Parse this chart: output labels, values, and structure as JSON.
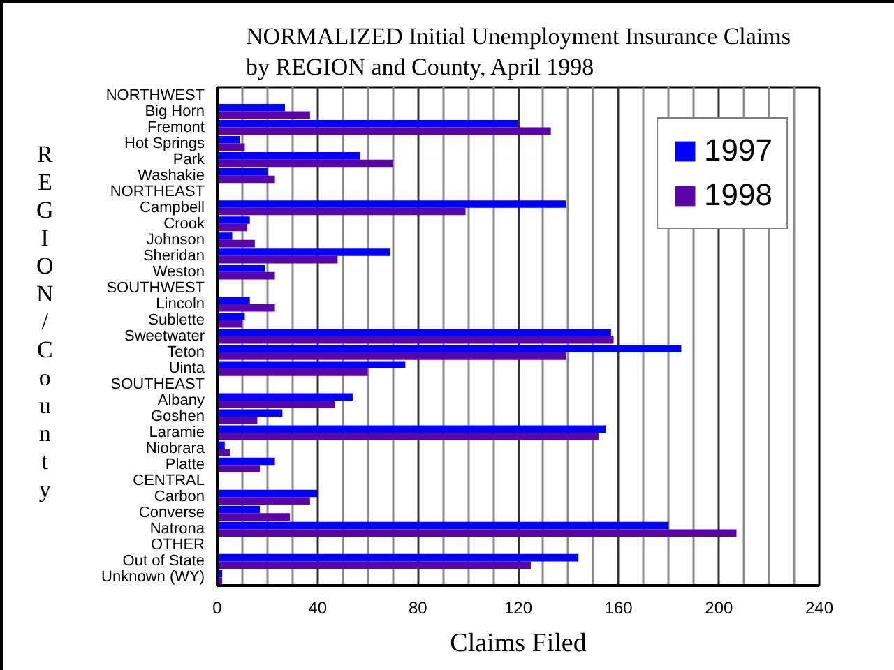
{
  "chart_data": {
    "type": "bar",
    "orientation": "horizontal",
    "title": "NORMALIZED Initial Unemployment Insurance Claims by REGION and County, April 1998",
    "xlabel": "Claims Filed",
    "ylabel": "REGION/County",
    "categories": [
      "NORTHWEST",
      "Big Horn",
      "Fremont",
      "Hot Springs",
      "Park",
      "Washakie",
      "NORTHEAST",
      "Campbell",
      "Crook",
      "Johnson",
      "Sheridan",
      "Weston",
      "SOUTHWEST",
      "Lincoln",
      "Sublette",
      "Sweetwater",
      "Teton",
      "Uinta",
      "SOUTHEAST",
      "Albany",
      "Goshen",
      "Laramie",
      "Niobrara",
      "Platte",
      "CENTRAL",
      "Carbon",
      "Converse",
      "Natrona",
      "OTHER",
      "Out of State",
      "Unknown (WY)"
    ],
    "series": [
      {
        "name": "1997",
        "color": "#0000ff",
        "values": [
          null,
          27,
          120,
          9,
          57,
          20,
          null,
          139,
          13,
          6,
          69,
          19,
          null,
          13,
          11,
          157,
          185,
          75,
          null,
          54,
          26,
          155,
          3,
          23,
          null,
          40,
          17,
          180,
          null,
          144,
          2
        ]
      },
      {
        "name": "1998",
        "color": "#5a05aa",
        "values": [
          null,
          37,
          133,
          11,
          70,
          23,
          null,
          99,
          12,
          15,
          48,
          23,
          null,
          23,
          10,
          158,
          139,
          60,
          null,
          47,
          16,
          152,
          5,
          17,
          null,
          37,
          29,
          207,
          null,
          125,
          2
        ]
      }
    ],
    "xlim": [
      0,
      240
    ],
    "xticks": [
      0,
      {
        "value": 10,
        "label": null
      },
      {
        "value": 20,
        "label": null
      },
      {
        "value": 30,
        "label": null
      },
      40,
      {
        "value": 50,
        "label": null
      },
      {
        "value": 60,
        "label": null
      },
      {
        "value": 70,
        "label": null
      },
      80,
      {
        "value": 90,
        "label": null
      },
      {
        "value": 100,
        "label": null
      },
      {
        "value": 110,
        "label": null
      },
      120,
      {
        "value": 130,
        "label": null
      },
      {
        "value": 140,
        "label": null
      },
      {
        "value": 150,
        "label": null
      },
      160,
      {
        "value": 170,
        "label": null
      },
      {
        "value": 180,
        "label": null
      },
      {
        "value": 190,
        "label": null
      },
      200,
      {
        "value": 210,
        "label": null
      },
      {
        "value": 220,
        "label": null
      },
      {
        "value": 230,
        "label": null
      },
      240
    ],
    "grid": "x",
    "legend": "top right"
  }
}
